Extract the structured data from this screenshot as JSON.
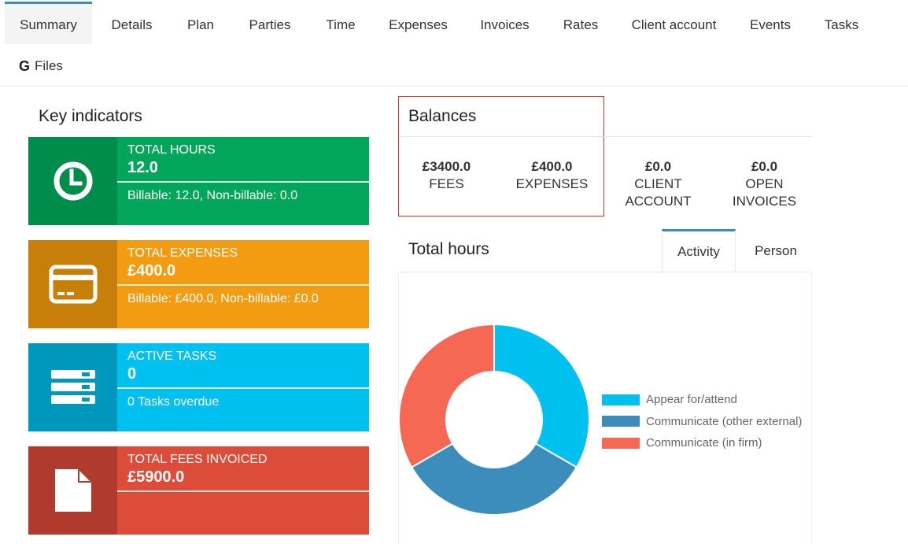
{
  "tabs": [
    {
      "label": "Summary",
      "active": true
    },
    {
      "label": "Details"
    },
    {
      "label": "Plan"
    },
    {
      "label": "Parties"
    },
    {
      "label": "Time"
    },
    {
      "label": "Expenses"
    },
    {
      "label": "Invoices"
    },
    {
      "label": "Rates"
    },
    {
      "label": "Client account"
    },
    {
      "label": "Events"
    },
    {
      "label": "Tasks"
    }
  ],
  "files_tab": {
    "icon": "google-g-icon",
    "letter": "G",
    "label": "Files"
  },
  "key_indicators": {
    "title": "Key indicators",
    "boxes": [
      {
        "icon": "clock-icon",
        "label": "TOTAL HOURS",
        "value": "12.0",
        "sub": "Billable: 12.0, Non-billable: 0.0",
        "color": "#00a65a"
      },
      {
        "icon": "credit-card-icon",
        "label": "TOTAL EXPENSES",
        "value": "£400.0",
        "sub": "Billable: £400.0, Non-billable: £0.0",
        "color": "#f39c12"
      },
      {
        "icon": "server-stack-icon",
        "label": "ACTIVE TASKS",
        "value": "0",
        "sub": "0 Tasks overdue",
        "color": "#00c0ef"
      },
      {
        "icon": "document-icon",
        "label": "TOTAL FEES INVOICED",
        "value": "£5900.0",
        "sub": "",
        "color": "#dd4b39"
      }
    ]
  },
  "balances": {
    "title": "Balances",
    "items": [
      {
        "amount": "£3400.0",
        "label": "FEES"
      },
      {
        "amount": "£400.0",
        "label": "EXPENSES"
      },
      {
        "amount": "£0.0",
        "label_line1": "CLIENT",
        "label_line2": "ACCOUNT"
      },
      {
        "amount": "£0.0",
        "label_line1": "OPEN",
        "label_line2": "INVOICES"
      }
    ]
  },
  "total_hours": {
    "title": "Total hours",
    "tabs": [
      {
        "label": "Activity",
        "active": true
      },
      {
        "label": "Person"
      }
    ]
  },
  "chart_data": {
    "type": "pie",
    "donut": true,
    "categories": [
      "Appear for/attend",
      "Communicate (other external)",
      "Communicate (in firm)"
    ],
    "values": [
      4,
      4,
      4
    ],
    "colors": [
      "#00c0ef",
      "#3c8dbc",
      "#f56954"
    ],
    "legend": "right"
  }
}
